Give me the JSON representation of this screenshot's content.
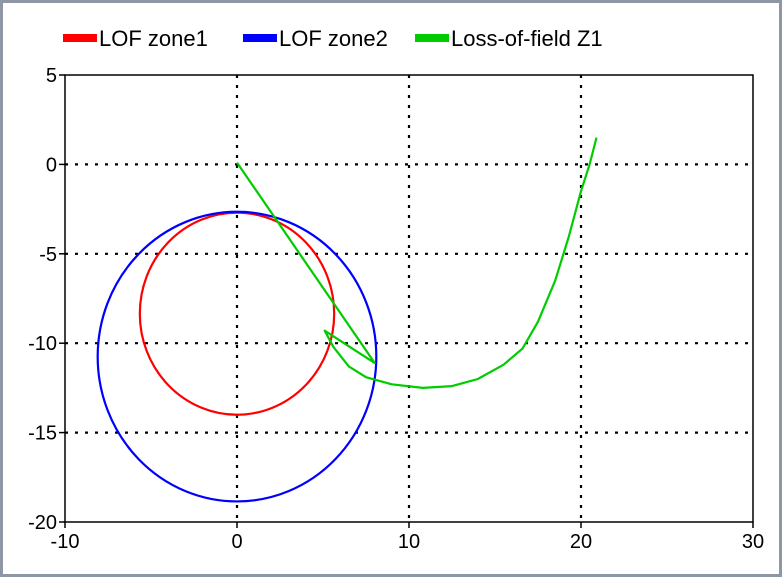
{
  "chart_data": {
    "type": "line",
    "title": "",
    "xlabel": "",
    "ylabel": "",
    "xlim": [
      -10,
      30
    ],
    "ylim": [
      -20,
      5
    ],
    "xticks": [
      -10,
      0,
      10,
      20,
      30
    ],
    "yticks": [
      5,
      0,
      -5,
      -10,
      -15,
      -20
    ],
    "grid": true,
    "grid_style": "dotted",
    "legend_position": "top",
    "series": [
      {
        "name": "LOF zone1",
        "color": "#ff0000",
        "shape": "circle",
        "center": [
          0,
          -8.35
        ],
        "radius": 5.65
      },
      {
        "name": "LOF zone2",
        "color": "#0000ff",
        "shape": "circle",
        "center": [
          0,
          -10.75
        ],
        "radius": 8.1
      },
      {
        "name": "Loss-of-field Z1",
        "color": "#00cc00",
        "x": [
          0,
          8.0,
          5.1,
          5.6,
          6.5,
          7.5,
          9.0,
          10.8,
          12.5,
          14.0,
          15.5,
          16.6,
          17.5,
          18.5,
          19.3,
          20.0,
          20.5,
          20.9
        ],
        "y": [
          0.1,
          -11.1,
          -9.3,
          -10.2,
          -11.3,
          -11.9,
          -12.3,
          -12.5,
          -12.4,
          -12.0,
          -11.2,
          -10.3,
          -8.8,
          -6.5,
          -4.0,
          -1.5,
          0.0,
          1.5
        ]
      }
    ]
  }
}
